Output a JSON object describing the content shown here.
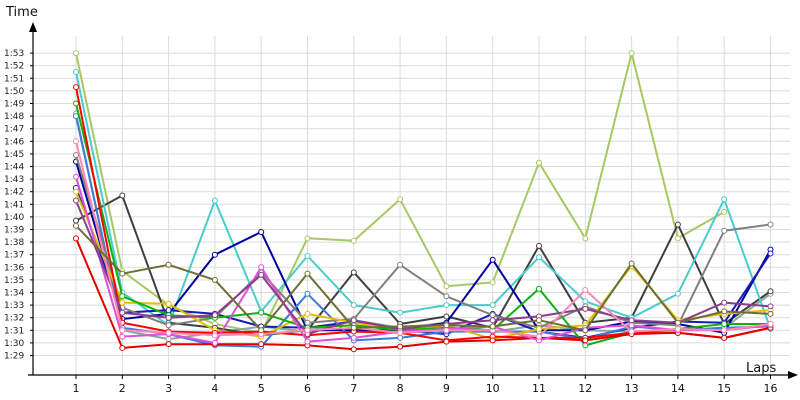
{
  "chart_data": {
    "type": "line",
    "ylabel": "Time",
    "xlabel": "Laps",
    "x": [
      1,
      2,
      3,
      4,
      5,
      6,
      7,
      8,
      9,
      10,
      11,
      12,
      13,
      14,
      15,
      16
    ],
    "ytick_labels": [
      "1:29",
      "1:30",
      "1:31",
      "1:32",
      "1:33",
      "1:34",
      "1:35",
      "1:36",
      "1:37",
      "1:38",
      "1:39",
      "1:40",
      "1:41",
      "1:42",
      "1:43",
      "1:44",
      "1:45",
      "1:46",
      "1:47",
      "1:48",
      "1:49",
      "1:50",
      "1:51",
      "1:52",
      "1:53"
    ],
    "ylim": [
      88.5,
      114
    ],
    "grid": true,
    "series": [
      {
        "color": "#a6c864",
        "values": [
          113.0,
          95.7,
          93.0,
          91.5,
          90.8,
          98.3,
          98.1,
          101.4,
          94.5,
          94.8,
          104.3,
          98.3,
          113.0,
          98.3,
          100.4,
          null
        ]
      },
      {
        "color": "#8ca6a0",
        "values": [
          108.2,
          91.0,
          90.3,
          90.8,
          91.3,
          90.9,
          91.8,
          91.2,
          91.6,
          90.9,
          91.4,
          91.0,
          90.9,
          91.0,
          91.2,
          93.9
        ]
      },
      {
        "color": "#3f3f3f",
        "values": [
          99.7,
          101.7,
          91.6,
          91.2,
          90.6,
          91.0,
          95.6,
          91.5,
          92.1,
          91.2,
          97.7,
          91.6,
          92.0,
          99.4,
          91.5,
          94.1
        ]
      },
      {
        "color": "#48cccc",
        "values": [
          111.5,
          94.0,
          91.4,
          101.3,
          92.5,
          96.9,
          93.0,
          92.4,
          93.0,
          93.0,
          96.8,
          93.3,
          92.0,
          93.9,
          101.4,
          91.1
        ]
      },
      {
        "color": "#00009c",
        "values": [
          104.4,
          91.9,
          92.3,
          97.0,
          98.8,
          91.0,
          91.0,
          91.0,
          91.6,
          96.6,
          91.0,
          91.0,
          91.7,
          91.5,
          90.8,
          97.4
        ]
      },
      {
        "color": "#1a1ab4",
        "values": [
          102.3,
          92.4,
          92.6,
          92.3,
          91.3,
          91.2,
          91.7,
          91.0,
          90.7,
          92.3,
          90.9,
          90.4,
          91.2,
          91.7,
          91.6,
          97.1
        ]
      },
      {
        "color": "#3c7bd8",
        "values": [
          108.0,
          91.2,
          90.7,
          89.8,
          89.7,
          93.9,
          90.2,
          90.4,
          90.9,
          90.9,
          90.9,
          90.3,
          91.3,
          91.0,
          91.2,
          91.3
        ]
      },
      {
        "color": "#808080",
        "values": [
          104.9,
          92.8,
          91.4,
          92.0,
          95.6,
          91.6,
          91.9,
          96.2,
          93.7,
          92.2,
          91.2,
          92.9,
          91.6,
          91.4,
          98.9,
          99.4
        ]
      },
      {
        "color": "#e0c000",
        "values": [
          102.0,
          93.2,
          93.1,
          91.0,
          90.5,
          92.3,
          91.6,
          91.0,
          91.4,
          90.3,
          91.1,
          91.4,
          96.1,
          91.8,
          92.3,
          92.6
        ]
      },
      {
        "color": "#10b010",
        "values": [
          109.0,
          93.7,
          92.2,
          92.0,
          92.4,
          91.2,
          91.4,
          91.0,
          91.2,
          91.0,
          94.3,
          89.8,
          90.8,
          91.1,
          91.5,
          91.5
        ]
      },
      {
        "color": "#ff0000",
        "values": [
          110.3,
          91.6,
          90.9,
          90.8,
          90.9,
          90.6,
          90.9,
          90.8,
          90.2,
          90.5,
          90.4,
          90.4,
          90.8,
          90.8,
          90.4,
          91.2
        ]
      },
      {
        "color": "#e00000",
        "values": [
          98.3,
          89.6,
          89.9,
          89.9,
          89.9,
          89.8,
          89.5,
          89.7,
          90.1,
          90.2,
          90.4,
          90.2,
          90.7,
          90.8,
          90.4,
          91.2
        ]
      },
      {
        "color": "#dc50dc",
        "values": [
          103.2,
          90.5,
          90.7,
          90.0,
          96.0,
          90.1,
          90.4,
          90.9,
          91.1,
          91.3,
          90.2,
          91.2,
          91.4,
          91.0,
          91.0,
          91.4
        ]
      },
      {
        "color": "#8c3c8c",
        "values": [
          101.3,
          92.4,
          92.0,
          92.2,
          95.4,
          90.7,
          91.8,
          91.1,
          91.5,
          91.8,
          92.1,
          92.7,
          91.8,
          91.6,
          93.2,
          92.9
        ]
      },
      {
        "color": "#ff88b0",
        "values": [
          106.0,
          91.0,
          90.8,
          90.6,
          90.7,
          91.0,
          91.2,
          90.8,
          91.0,
          91.0,
          90.5,
          94.2,
          90.9,
          91.1,
          91.0,
          91.5
        ]
      },
      {
        "color": "#6e6e32",
        "values": [
          99.3,
          95.5,
          96.2,
          95.0,
          91.0,
          95.5,
          91.2,
          91.3,
          91.4,
          91.3,
          91.8,
          91.0,
          96.3,
          91.6,
          92.5,
          92.3
        ]
      }
    ]
  }
}
